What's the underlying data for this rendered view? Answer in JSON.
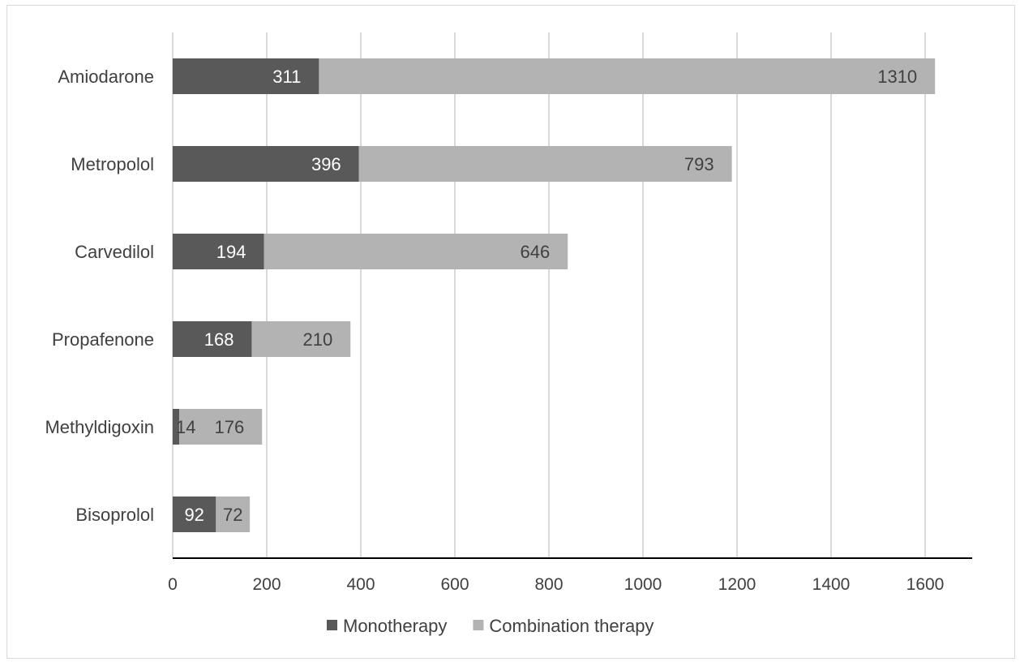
{
  "chart_data": {
    "type": "bar",
    "orientation": "horizontal",
    "stacked": true,
    "title": "",
    "xlabel": "",
    "ylabel": "",
    "categories": [
      "Amiodarone",
      "Metropolol",
      "Carvedilol",
      "Propafenone",
      "Methyldigoxin",
      "Bisoprolol"
    ],
    "series": [
      {
        "name": "Monotherapy",
        "values": [
          311,
          396,
          194,
          168,
          14,
          92
        ],
        "color": "#595959",
        "label_color": "#ffffff"
      },
      {
        "name": "Combination therapy",
        "values": [
          1310,
          793,
          646,
          210,
          176,
          72
        ],
        "color": "#b3b3b3",
        "label_color": "#404040"
      }
    ],
    "xlim": [
      0,
      1700
    ],
    "x_ticks": [
      0,
      200,
      400,
      600,
      800,
      1000,
      1200,
      1400,
      1600
    ],
    "x_tick_labels": [
      "0",
      "200",
      "400",
      "600",
      "800",
      "1000",
      "1200",
      "1400",
      "1600"
    ],
    "grid": "vertical",
    "legend": "bottom-center",
    "data_labels": true
  }
}
